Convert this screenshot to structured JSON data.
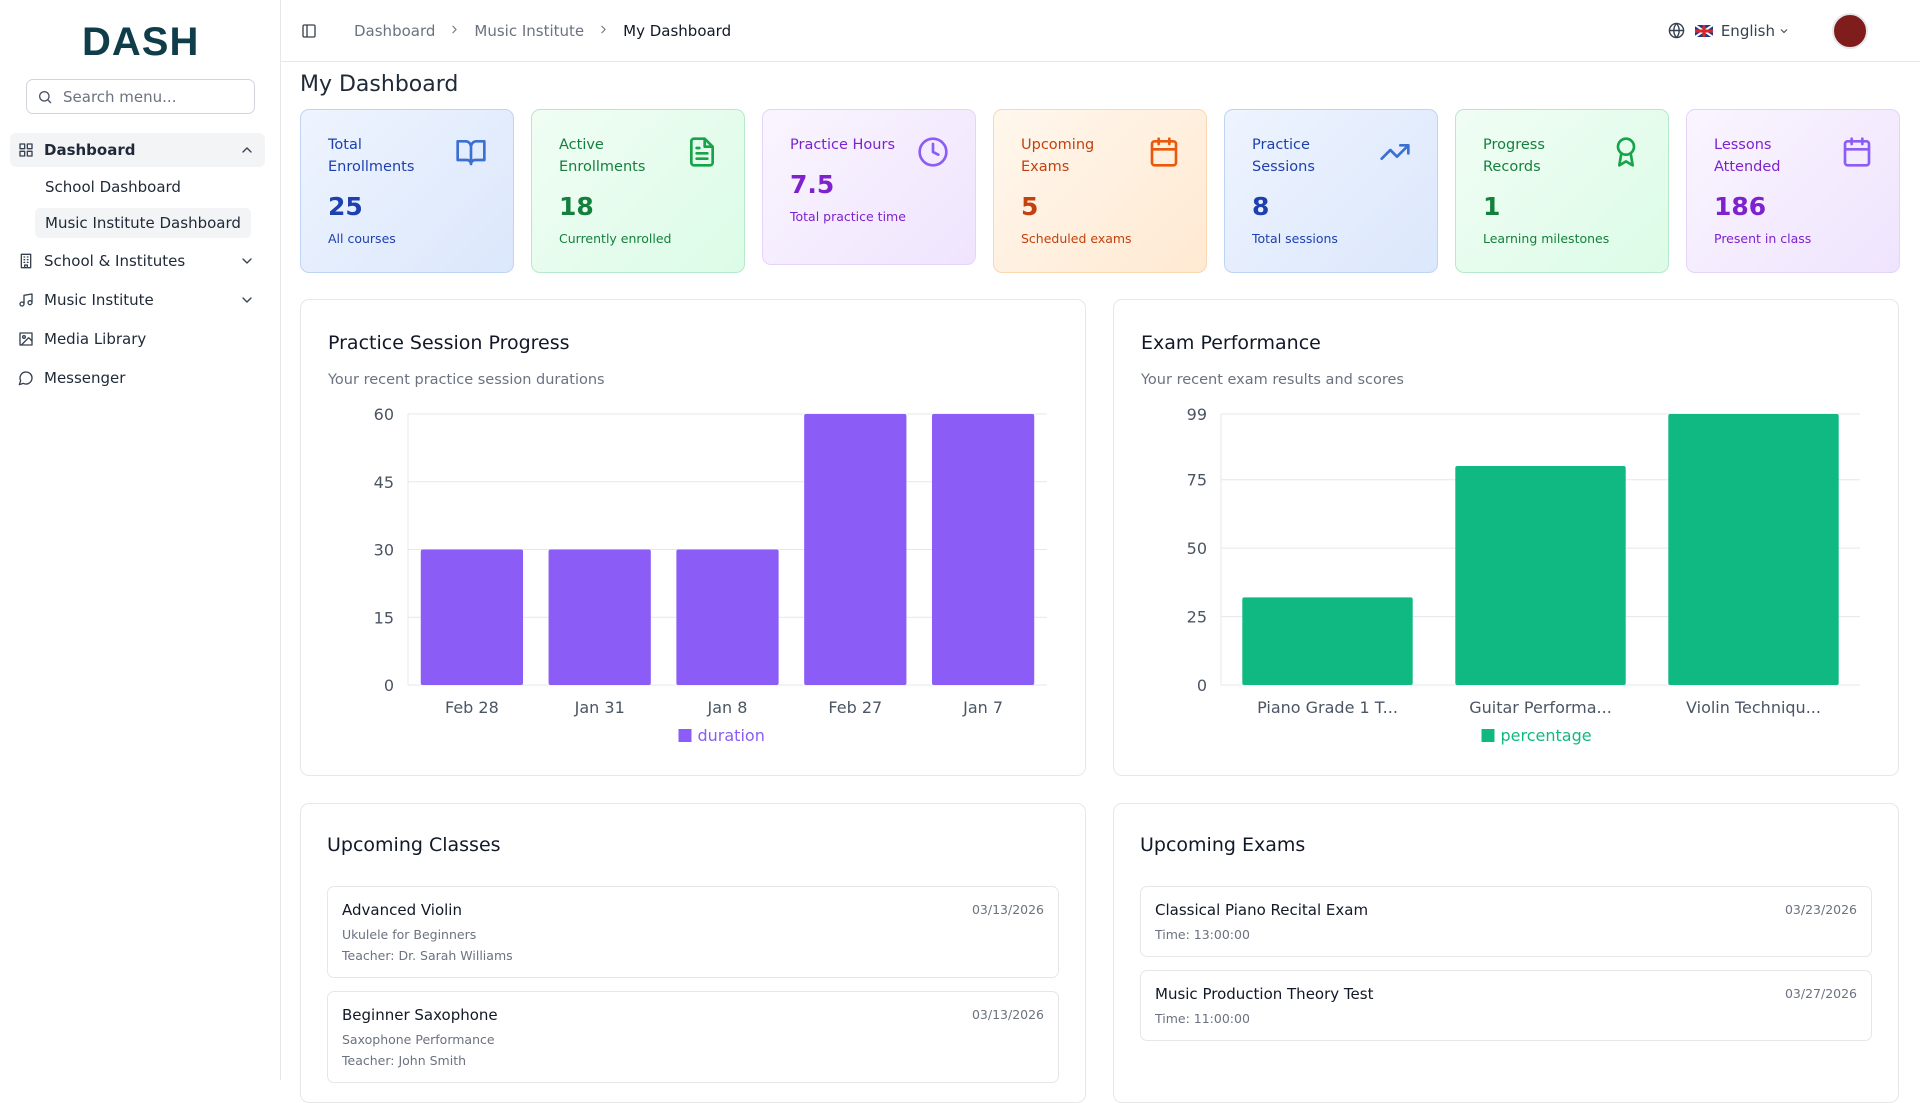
{
  "logo": "DASH",
  "search_placeholder": "Search menu...",
  "nav": [
    {
      "label": "Dashboard",
      "children": [
        "School Dashboard",
        "Music Institute Dashboard"
      ]
    },
    {
      "label": "School & Institutes"
    },
    {
      "label": "Music Institute"
    },
    {
      "label": "Media Library"
    },
    {
      "label": "Messenger"
    }
  ],
  "breadcrumbs": [
    "Dashboard",
    "Music Institute",
    "My Dashboard"
  ],
  "language": "English",
  "page_title": "My Dashboard",
  "stats": [
    {
      "label": "Total Enrollments",
      "value": 25,
      "note": "All courses"
    },
    {
      "label": "Active Enrollments",
      "value": 18,
      "note": "Currently enrolled"
    },
    {
      "label": "Practice Hours",
      "value": 7.5,
      "note": "Total practice time"
    },
    {
      "label": "Upcoming Exams",
      "value": 5,
      "note": "Scheduled exams"
    },
    {
      "label": "Practice Sessions",
      "value": 8,
      "note": "Total sessions"
    },
    {
      "label": "Progress Records",
      "value": 1,
      "note": "Learning milestones"
    },
    {
      "label": "Lessons Attended",
      "value": 186,
      "note": "Present in class"
    }
  ],
  "chart_data": [
    {
      "type": "bar",
      "title": "Practice Session Progress",
      "subtitle": "Your recent practice session durations",
      "categories": [
        "Feb 28",
        "Jan 31",
        "Jan 8",
        "Feb 27",
        "Jan 7"
      ],
      "series": [
        {
          "name": "duration",
          "color": "#8b5cf6",
          "values": [
            30,
            30,
            30,
            60,
            60
          ]
        }
      ],
      "ylim": [
        0,
        60
      ],
      "yticks": [
        0,
        15,
        30,
        45,
        60
      ],
      "grid": true,
      "legend": "bottom"
    },
    {
      "type": "bar",
      "title": "Exam Performance",
      "subtitle": "Your recent exam results and scores",
      "categories": [
        "Piano Grade 1 T...",
        "Guitar Performa...",
        "Violin Techniqu..."
      ],
      "series": [
        {
          "name": "percentage",
          "color": "#10b981",
          "values": [
            32,
            80,
            99
          ]
        }
      ],
      "ylim": [
        0,
        99
      ],
      "yticks": [
        0,
        25,
        50,
        75,
        99
      ],
      "grid": true,
      "legend": "bottom"
    }
  ],
  "upcoming_classes": {
    "title": "Upcoming Classes",
    "items": [
      {
        "name": "Advanced Violin",
        "course": "Ukulele for Beginners",
        "teacher": "Teacher: Dr. Sarah Williams",
        "date": "03/13/2026"
      },
      {
        "name": "Beginner Saxophone",
        "course": "Saxophone Performance",
        "teacher": "Teacher: John Smith",
        "date": "03/13/2026"
      }
    ]
  },
  "upcoming_exams": {
    "title": "Upcoming Exams",
    "items": [
      {
        "name": "Classical Piano Recital Exam",
        "time": "Time: 13:00:00",
        "date": "03/23/2026"
      },
      {
        "name": "Music Production Theory Test",
        "time": "Time: 11:00:00",
        "date": "03/27/2026"
      }
    ]
  }
}
